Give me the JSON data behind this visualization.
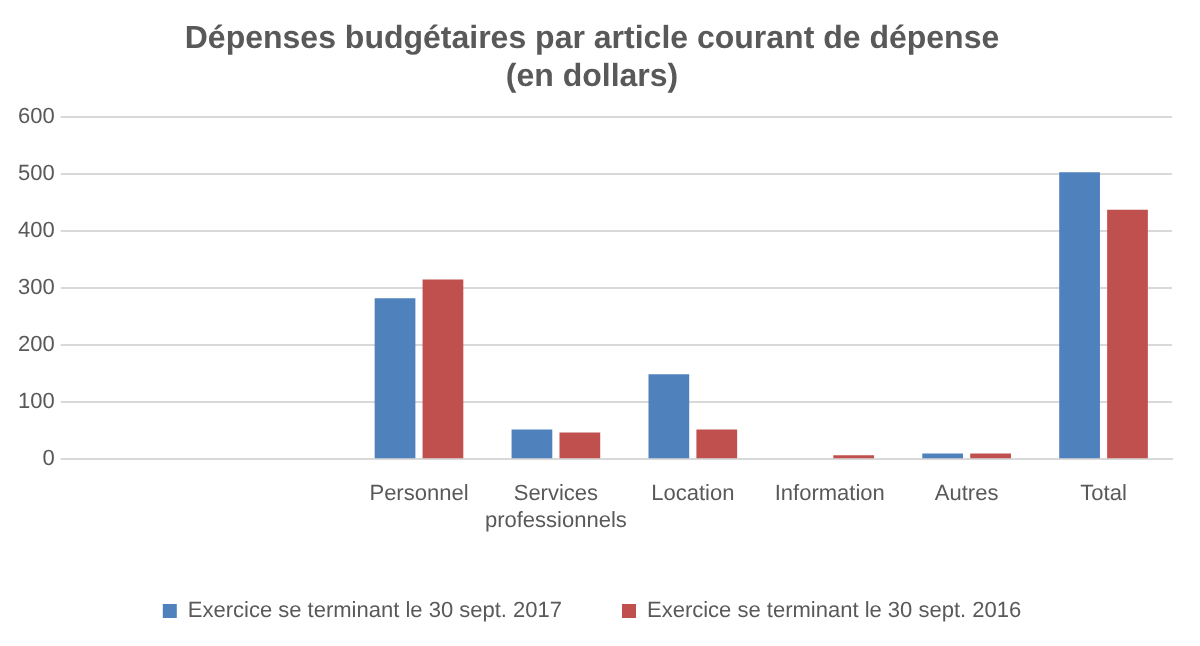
{
  "chart_data": {
    "type": "bar",
    "title": [
      "Dépenses budgétaires par article courant de dépense",
      "(en dollars)"
    ],
    "categories": [
      null,
      null,
      "Personnel",
      [
        "Services",
        "professionnels"
      ],
      "Location",
      "Information",
      "Autres",
      "Total"
    ],
    "series": [
      {
        "name": "Exercice se terminant le 30 sept. 2017",
        "color": "#4f81bd",
        "values": [
          null,
          null,
          282,
          52,
          149,
          0,
          10,
          503
        ]
      },
      {
        "name": "Exercice se terminant le 30 sept. 2016",
        "color": "#c0504d",
        "values": [
          null,
          null,
          315,
          47,
          52,
          7,
          10,
          437
        ]
      }
    ],
    "ylim": [
      0,
      600
    ],
    "yticks": [
      0,
      100,
      200,
      300,
      400,
      500,
      600
    ],
    "grid": "y",
    "legend": "bottom"
  }
}
